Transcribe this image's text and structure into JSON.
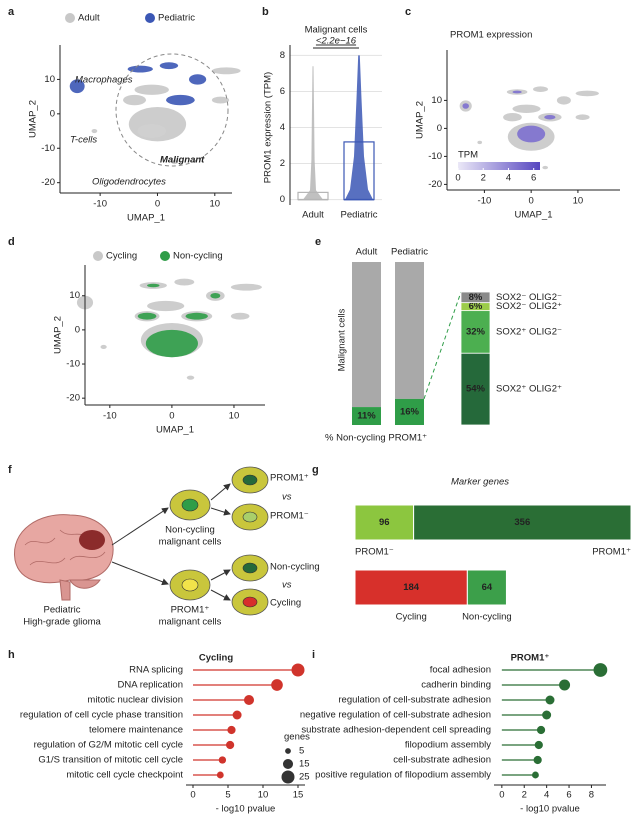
{
  "chart_data": [
    {
      "panel": "a",
      "type": "umap",
      "xlabel": "UMAP_1",
      "ylabel": "UMAP_2",
      "xlim": [
        -17,
        13
      ],
      "ylim": [
        -23,
        20
      ],
      "xticks": [
        -10,
        0,
        10
      ],
      "yticks": [
        -20,
        -10,
        0,
        10
      ],
      "legend": [
        {
          "name": "Adult",
          "color": "#c8c8c8"
        },
        {
          "name": "Pediatric",
          "color": "#3b57b5"
        }
      ],
      "annotations": [
        "Macrophages",
        "T-cells",
        "Malignant",
        "Oligodendrocytes"
      ]
    },
    {
      "panel": "b",
      "type": "box",
      "title": "Malignant cells",
      "ylabel": "PROM1 expression (TPM)",
      "annotation": "<2.2e−16",
      "categories": [
        "Adult",
        "Pediatric"
      ],
      "colors": [
        "#b5b5b5",
        "#3b57b5"
      ],
      "q1": [
        0,
        0
      ],
      "median": [
        0,
        0
      ],
      "q3": [
        0.4,
        3.2
      ],
      "max": [
        7.4,
        8
      ],
      "ylim": [
        -0.3,
        8.3
      ],
      "yticks": [
        0,
        2,
        4,
        6,
        8
      ],
      "grid": true
    },
    {
      "panel": "c",
      "type": "umap",
      "title": "PROM1 expression",
      "xlabel": "UMAP_1",
      "ylabel": "UMAP_2",
      "xlim": [
        -18,
        19
      ],
      "ylim": [
        -22,
        28
      ],
      "xticks": [
        -10,
        0,
        10
      ],
      "yticks": [
        -20,
        -10,
        0,
        10
      ],
      "colorbar": {
        "title": "TPM",
        "ticks": [
          0,
          2,
          4,
          6
        ],
        "lim": [
          0,
          6.5
        ],
        "colors": [
          "#ebe8f7",
          "#5646c0"
        ]
      }
    },
    {
      "panel": "d",
      "type": "umap",
      "xlabel": "UMAP_1",
      "ylabel": "UMAP_2",
      "xlim": [
        -14,
        15
      ],
      "ylim": [
        -22,
        19
      ],
      "xticks": [
        -10,
        0,
        10
      ],
      "yticks": [
        -20,
        -10,
        0,
        10
      ],
      "legend": [
        {
          "name": "Cycling",
          "color": "#c8c8c8"
        },
        {
          "name": "Non-cycling",
          "color": "#2f9d48"
        }
      ]
    },
    {
      "panel": "e",
      "type": "stacked_percent",
      "ylabel": "Malignant cells",
      "xlabel": "% Non-cycling PROM1⁺",
      "categories": [
        "Adult",
        "Pediatric"
      ],
      "label_colors": [
        "#333333",
        "#3b57b5"
      ],
      "values": [
        11,
        16
      ],
      "value_labels": [
        "11%",
        "16%"
      ],
      "color": "#2f9d48",
      "rest_color": "#a9a9a9",
      "ylim": [
        0,
        100
      ],
      "breakdown": {
        "names": [
          "SOX2⁺ OLIG2⁺",
          "SOX2⁺ OLIG2⁻",
          "SOX2⁻ OLIG2⁺",
          "SOX2⁻ OLIG2⁻"
        ],
        "values": [
          54,
          32,
          6,
          8
        ],
        "value_labels": [
          "54%",
          "32%",
          "6%",
          "8%"
        ],
        "colors": [
          "#25693a",
          "#4caf50",
          "#9ccc4a",
          "#8a8a8a"
        ]
      }
    },
    {
      "panel": "g",
      "type": "hbar_stacked",
      "title": "Marker genes",
      "bars": [
        {
          "names": [
            "PROM1⁻",
            "PROM1⁺"
          ],
          "values": [
            96,
            356
          ],
          "colors": [
            "#8cc63f",
            "#2a6e35"
          ]
        },
        {
          "names": [
            "Cycling",
            "Non-cycling"
          ],
          "values": [
            184,
            64
          ],
          "colors": [
            "#d7302b",
            "#3c9f4a"
          ]
        }
      ]
    },
    {
      "panel": "h",
      "type": "lollipop",
      "title": "Cycling",
      "color": "#d0342c",
      "categories": [
        "RNA splicing",
        "DNA replication",
        "mitotic nuclear division",
        "regulation of cell cycle phase transition",
        "telomere maintenance",
        "regulation of G2/M mitotic cell cycle",
        "G1/S transition of mitotic cell cycle",
        "mitotic cell cycle checkpoint"
      ],
      "values": [
        15,
        12,
        8,
        6.3,
        5.5,
        5.3,
        4.2,
        3.9
      ],
      "sizes": [
        25,
        20,
        15,
        12,
        10,
        10,
        8,
        7
      ],
      "xlabel": "- log10 pvalue",
      "xlim": [
        -1,
        16
      ],
      "xticks": [
        0,
        5,
        10,
        15
      ],
      "size_legend": {
        "title": "genes",
        "values": [
          5,
          15,
          25
        ]
      }
    },
    {
      "panel": "i",
      "type": "lollipop",
      "title": "PROM1⁺",
      "color": "#2a6e35",
      "categories": [
        "focal adhesion",
        "cadherin binding",
        "regulation of cell-substrate adhesion",
        "negative regulation of cell-substrate adhesion",
        "substrate adhesion-dependent cell spreading",
        "filopodium assembly",
        "cell-substrate adhesion",
        "positive regulation of filopodium assembly"
      ],
      "values": [
        8.8,
        5.6,
        4.3,
        4.0,
        3.5,
        3.3,
        3.2,
        3.0
      ],
      "sizes": [
        28,
        18,
        12,
        12,
        10,
        10,
        10,
        7
      ],
      "xlabel": "- log10 pvalue",
      "xlim": [
        -0.7,
        9.3
      ],
      "xticks": [
        0,
        2,
        4,
        6,
        8
      ]
    }
  ],
  "diagram": {
    "panel": "f",
    "top_pair": [
      "PROM1⁺",
      "vs",
      "PROM1⁻"
    ],
    "top_group": [
      "Non-cycling",
      "malignant cells"
    ],
    "bottom_pair": [
      "Non-cycling",
      "vs",
      "Cycling"
    ],
    "bottom_group": [
      "PROM1⁺",
      "malignant cells"
    ],
    "source": [
      "Pediatric",
      "High-grade glioma"
    ]
  }
}
